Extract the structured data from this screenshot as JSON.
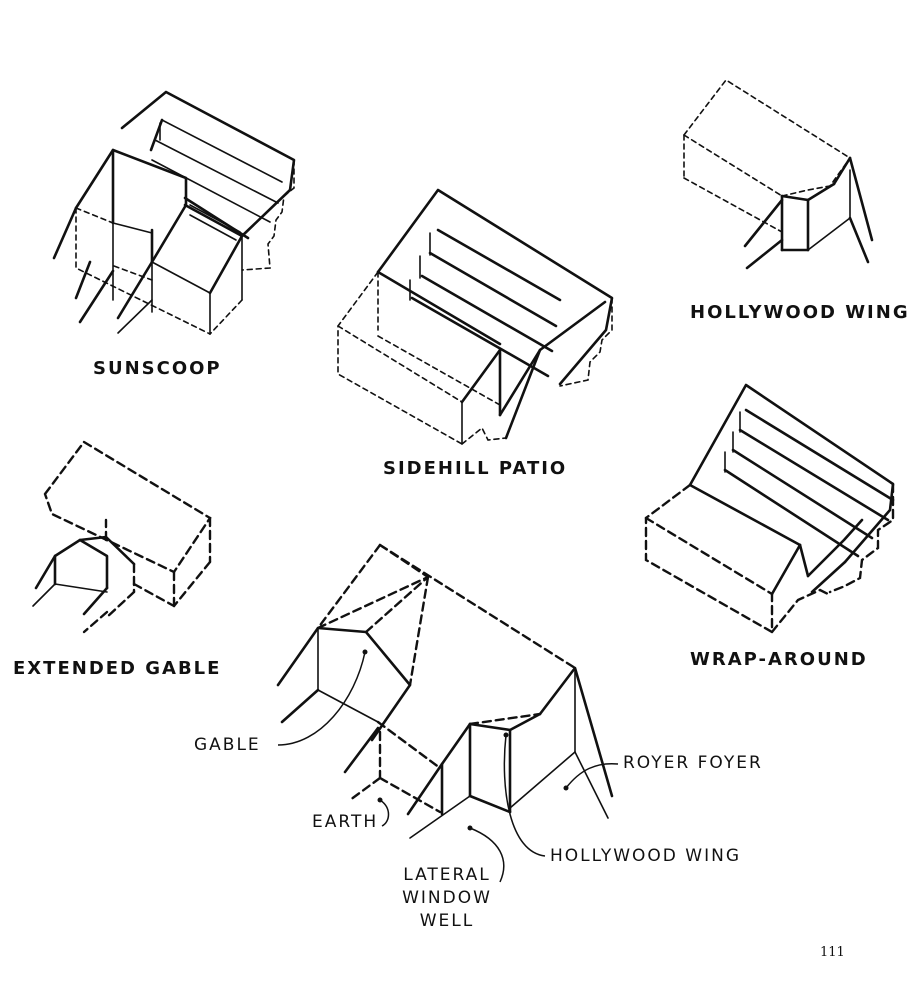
{
  "figures": {
    "sunscoop": "SUNSCOOP",
    "sidehill_patio": "SIDEHILL PATIO",
    "hollywood_wing": "HOLLYWOOD WING",
    "extended_gable": "EXTENDED GABLE",
    "wrap_around": "WRAP-AROUND"
  },
  "callouts": {
    "gable": "GABLE",
    "earth": "EARTH",
    "lateral_window_well_lines": [
      "LATERAL",
      "WINDOW",
      "WELL"
    ],
    "hollywood_wing": "HOLLYWOOD WING",
    "royer_foyer": "ROYER FOYER"
  },
  "page_number": "111"
}
